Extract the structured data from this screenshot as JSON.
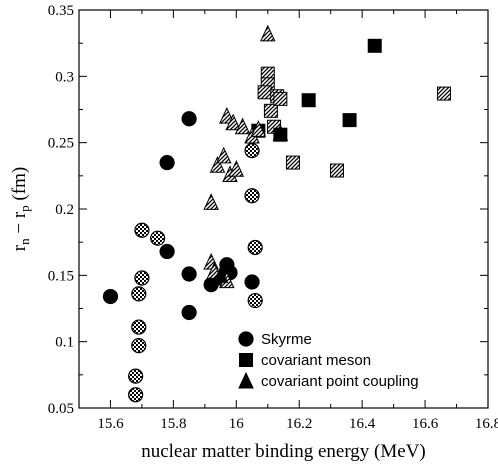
{
  "chart_data": {
    "type": "scatter",
    "xlabel": "nuclear matter binding energy (MeV)",
    "ylabel": {
      "base": "r",
      "sub1": "n",
      "mid": " − r",
      "sub2": "p",
      "unit": " (fm)"
    },
    "xlim": [
      15.5,
      16.8
    ],
    "ylim": [
      0.05,
      0.35
    ],
    "xticks": [
      "15.6",
      "15.8",
      "16",
      "16.2",
      "16.4",
      "16.6",
      "16.8"
    ],
    "yticks": [
      "0.05",
      "0.1",
      "0.15",
      "0.2",
      "0.25",
      "0.3",
      "0.35"
    ],
    "grid": false,
    "legend_position": "bottom-right",
    "series": [
      {
        "name": "Skyrme",
        "marker": "circle",
        "filled": [
          [
            15.6,
            0.134
          ],
          [
            15.78,
            0.235
          ],
          [
            15.78,
            0.168
          ],
          [
            15.85,
            0.268
          ],
          [
            15.85,
            0.151
          ],
          [
            15.85,
            0.122
          ],
          [
            15.92,
            0.143
          ],
          [
            15.95,
            0.148
          ],
          [
            15.97,
            0.158
          ],
          [
            15.98,
            0.152
          ],
          [
            16.05,
            0.145
          ]
        ],
        "hatched": [
          [
            15.68,
            0.06
          ],
          [
            15.68,
            0.074
          ],
          [
            15.69,
            0.097
          ],
          [
            15.69,
            0.111
          ],
          [
            15.69,
            0.136
          ],
          [
            15.7,
            0.148
          ],
          [
            15.7,
            0.184
          ],
          [
            15.75,
            0.178
          ],
          [
            16.05,
            0.244
          ],
          [
            16.05,
            0.21
          ],
          [
            16.06,
            0.171
          ],
          [
            16.06,
            0.131
          ]
        ]
      },
      {
        "name": "covariant meson",
        "marker": "square",
        "filled": [
          [
            16.07,
            0.259
          ],
          [
            16.14,
            0.256
          ],
          [
            16.23,
            0.282
          ],
          [
            16.36,
            0.267
          ],
          [
            16.44,
            0.323
          ]
        ],
        "hatched": [
          [
            16.1,
            0.302
          ],
          [
            16.1,
            0.294
          ],
          [
            16.09,
            0.288
          ],
          [
            16.11,
            0.274
          ],
          [
            16.12,
            0.262
          ],
          [
            16.13,
            0.285
          ],
          [
            16.14,
            0.283
          ],
          [
            16.18,
            0.235
          ],
          [
            16.32,
            0.229
          ],
          [
            16.66,
            0.287
          ]
        ]
      },
      {
        "name": "covariant point coupling",
        "marker": "triangle",
        "filled": [
          [
            15.95,
            0.15
          ],
          [
            16.14,
            0.257
          ]
        ],
        "hatched": [
          [
            15.92,
            0.205
          ],
          [
            15.92,
            0.16
          ],
          [
            15.94,
            0.233
          ],
          [
            15.96,
            0.24
          ],
          [
            15.97,
            0.27
          ],
          [
            15.98,
            0.226
          ],
          [
            15.99,
            0.265
          ],
          [
            16.0,
            0.23
          ],
          [
            16.02,
            0.262
          ],
          [
            16.05,
            0.255
          ],
          [
            16.07,
            0.26
          ],
          [
            16.1,
            0.332
          ],
          [
            15.93,
            0.153
          ],
          [
            15.97,
            0.146
          ]
        ]
      }
    ]
  },
  "colors": {
    "ink": "#000000",
    "background": "#ffffff"
  }
}
